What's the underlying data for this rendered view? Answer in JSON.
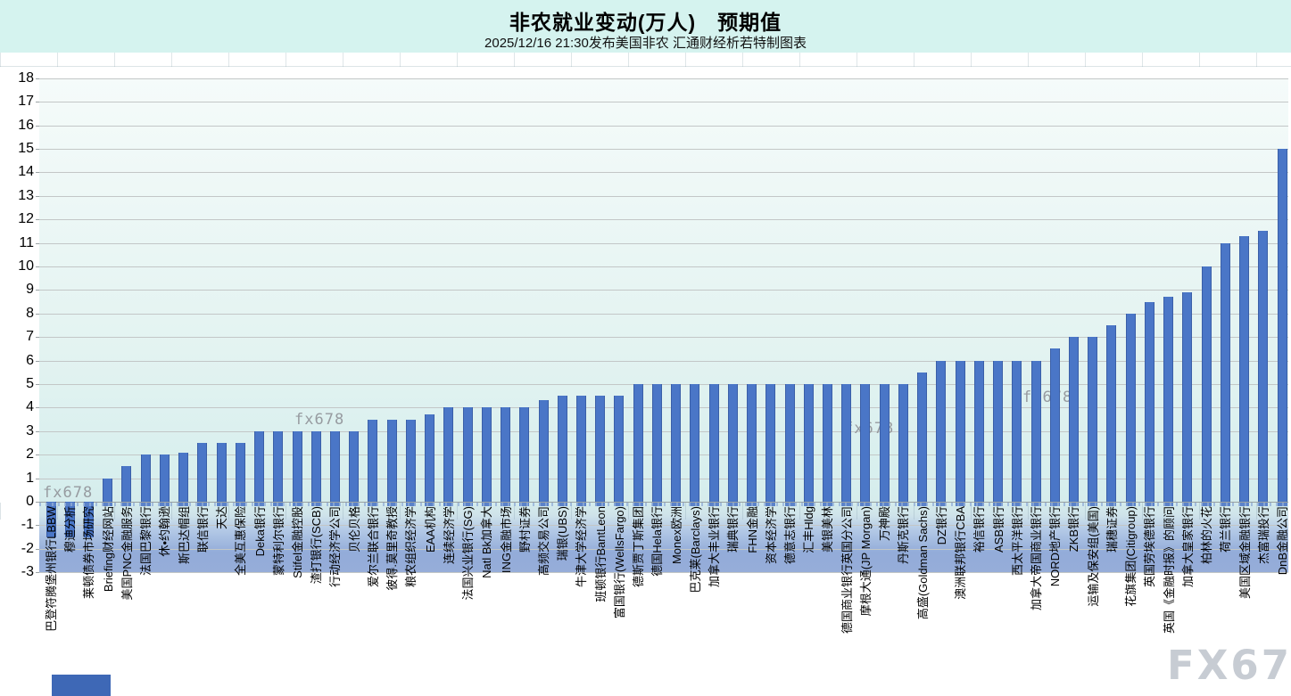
{
  "header": {
    "title": "非农就业变动(万人)　预期值",
    "subtitle": "2025/12/16 21:30发布美国非农  汇通财经析若特制图表"
  },
  "watermarks": {
    "small": "fx678",
    "large": "FX678"
  },
  "chart_data": {
    "type": "bar",
    "title": "非农就业变动(万人) 预期值",
    "subtitle": "2025/12/16 21:30发布美国非农 汇通财经析若特制图表",
    "ylabel": "",
    "ylim": [
      -3,
      18
    ],
    "ytick_step": 1,
    "grid": true,
    "legend_position": "none",
    "bar_color": "#4a76c7",
    "categories": [
      "巴登符腾堡州银行LBBW",
      "穆迪分析",
      "莱顿债券市场研究",
      "Briefing财经网站",
      "美国PNC金融服务",
      "法国巴黎银行",
      "休•约翰逊",
      "斯巴达帽组",
      "联信银行",
      "天达",
      "全美互惠保险",
      "Deka银行",
      "蒙特利尔银行",
      "Stifel金融控股",
      "渣打银行(SCB)",
      "行动经济学公司",
      "贝伦贝格",
      "爱尔兰联合银行",
      "彼得.莫里奇教授",
      "粮农组织经济学",
      "EAA机构",
      "连续经济学",
      "法国兴业银行(SG)",
      "Natl Bk加拿大",
      "ING金融市场",
      "野村证券",
      "高频交易公司",
      "瑞银(UBS)",
      "牛津大学经济学",
      "班顿银行BantLeon",
      "富国银行(WellsFargo)",
      "德斯贾丁斯集团",
      "德国Hela银行",
      "Monex欧洲",
      "巴克莱(Barclays)",
      "加拿大丰业银行",
      "瑞典银行",
      "FHN金融",
      "资本经济学",
      "德意志银行",
      "汇丰Hldg",
      "美银美林",
      "德国商业银行英国分公司",
      "摩根大通(JP Morgan)",
      "万神殿",
      "丹斯克银行",
      "高盛(Goldman Sachs)",
      "DZ银行",
      "澳洲联邦银行CBA",
      "裕信银行",
      "ASB银行",
      "西太平洋银行",
      "加拿大帝国商业银行",
      "NORD地产银行",
      "ZKB银行",
      "运输及保安组(美国)",
      "瑞穗证券",
      "花旗集团(Citigroup)",
      "英国劳埃德银行",
      "英国《金融时报》的顾问",
      "加拿大皇家银行",
      "柏林的火花",
      "荷兰银行",
      "美国区域金融银行",
      "杰富瑞投行",
      "DnB金融公司"
    ],
    "values": [
      -1.5,
      -1.5,
      -1.5,
      1,
      1.5,
      2,
      2,
      2.1,
      2.5,
      2.5,
      2.5,
      3,
      3,
      3,
      3,
      3,
      3,
      3.5,
      3.5,
      3.5,
      3.7,
      4,
      4,
      4,
      4,
      4,
      4.3,
      4.5,
      4.5,
      4.5,
      4.5,
      5,
      5,
      5,
      5,
      5,
      5,
      5,
      5,
      5,
      5,
      5,
      5,
      5,
      5,
      5,
      5.5,
      6,
      6,
      6,
      6,
      6,
      6,
      6.5,
      7,
      7,
      7.5,
      8,
      8.5,
      8.7,
      8.9,
      10,
      11,
      11.3,
      11.5,
      15
    ]
  }
}
